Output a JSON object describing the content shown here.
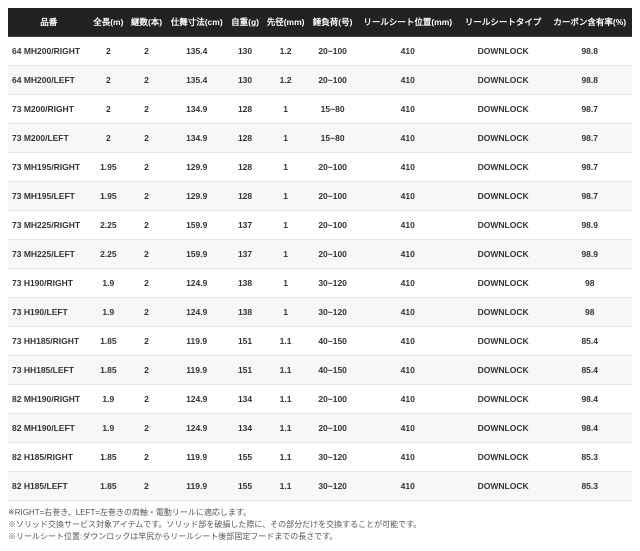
{
  "table": {
    "columns": [
      "品番",
      "全長(m)",
      "継数(本)",
      "仕舞寸法(cm)",
      "自重(g)",
      "先径(mm)",
      "錘負荷(号)",
      "リールシート位置(mm)",
      "リールシートタイプ",
      "カーボン含有率(%)"
    ],
    "rows": [
      [
        "64 MH200/RIGHT",
        "2",
        "2",
        "135.4",
        "130",
        "1.2",
        "20~100",
        "410",
        "DOWNLOCK",
        "98.8"
      ],
      [
        "64 MH200/LEFT",
        "2",
        "2",
        "135.4",
        "130",
        "1.2",
        "20~100",
        "410",
        "DOWNLOCK",
        "98.8"
      ],
      [
        "73 M200/RIGHT",
        "2",
        "2",
        "134.9",
        "128",
        "1",
        "15~80",
        "410",
        "DOWNLOCK",
        "98.7"
      ],
      [
        "73 M200/LEFT",
        "2",
        "2",
        "134.9",
        "128",
        "1",
        "15~80",
        "410",
        "DOWNLOCK",
        "98.7"
      ],
      [
        "73 MH195/RIGHT",
        "1.95",
        "2",
        "129.9",
        "128",
        "1",
        "20~100",
        "410",
        "DOWNLOCK",
        "98.7"
      ],
      [
        "73 MH195/LEFT",
        "1.95",
        "2",
        "129.9",
        "128",
        "1",
        "20~100",
        "410",
        "DOWNLOCK",
        "98.7"
      ],
      [
        "73 MH225/RIGHT",
        "2.25",
        "2",
        "159.9",
        "137",
        "1",
        "20~100",
        "410",
        "DOWNLOCK",
        "98.9"
      ],
      [
        "73 MH225/LEFT",
        "2.25",
        "2",
        "159.9",
        "137",
        "1",
        "20~100",
        "410",
        "DOWNLOCK",
        "98.9"
      ],
      [
        "73 H190/RIGHT",
        "1.9",
        "2",
        "124.9",
        "138",
        "1",
        "30~120",
        "410",
        "DOWNLOCK",
        "98"
      ],
      [
        "73 H190/LEFT",
        "1.9",
        "2",
        "124.9",
        "138",
        "1",
        "30~120",
        "410",
        "DOWNLOCK",
        "98"
      ],
      [
        "73 HH185/RIGHT",
        "1.85",
        "2",
        "119.9",
        "151",
        "1.1",
        "40~150",
        "410",
        "DOWNLOCK",
        "85.4"
      ],
      [
        "73 HH185/LEFT",
        "1.85",
        "2",
        "119.9",
        "151",
        "1.1",
        "40~150",
        "410",
        "DOWNLOCK",
        "85.4"
      ],
      [
        "82 MH190/RIGHT",
        "1.9",
        "2",
        "124.9",
        "134",
        "1.1",
        "20~100",
        "410",
        "DOWNLOCK",
        "98.4"
      ],
      [
        "82 MH190/LEFT",
        "1.9",
        "2",
        "124.9",
        "134",
        "1.1",
        "20~100",
        "410",
        "DOWNLOCK",
        "98.4"
      ],
      [
        "82 H185/RIGHT",
        "1.85",
        "2",
        "119.9",
        "155",
        "1.1",
        "30~120",
        "410",
        "DOWNLOCK",
        "85.3"
      ],
      [
        "82 H185/LEFT",
        "1.85",
        "2",
        "119.9",
        "155",
        "1.1",
        "30~120",
        "410",
        "DOWNLOCK",
        "85.3"
      ]
    ]
  },
  "notes": [
    "※RIGHT=右巻き、LEFT=左巻きの両軸・電動リールに適応します。",
    "※ソリッド交換サービス対象アイテムです。ソリッド部を破損した際に、その部分だけを交換することが可能です。",
    "※リールシート位置:ダウンロックは竿尻からリールシート後部固定フードまでの長さです。"
  ]
}
